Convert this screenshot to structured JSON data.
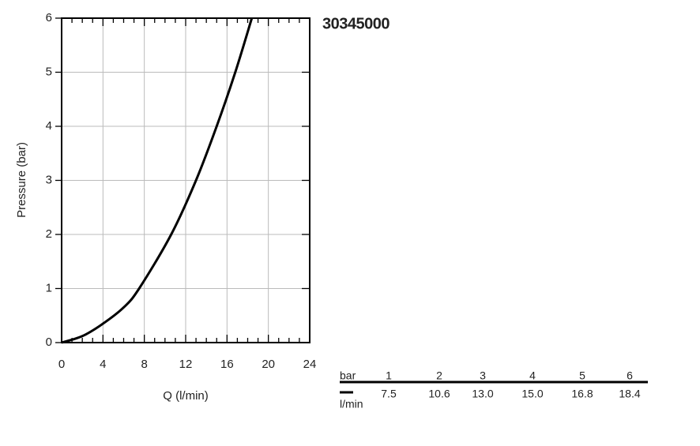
{
  "chart_data": {
    "type": "line",
    "title": "30345000",
    "xlabel": "Q (l/min)",
    "ylabel": "Pressure (bar)",
    "x": [
      0,
      2,
      4,
      6,
      7.5,
      10.6,
      13.0,
      15.0,
      16.8,
      18.4
    ],
    "series": [
      {
        "color": "#000000",
        "values": [
          0,
          0.12,
          0.35,
          0.65,
          1,
          2,
          3,
          4,
          5,
          6
        ]
      }
    ],
    "xlim": [
      0,
      24
    ],
    "xticks": [
      0,
      4,
      8,
      12,
      16,
      20,
      24
    ],
    "ylim": [
      0,
      6
    ],
    "yticks": [
      0,
      1,
      2,
      3,
      4,
      5,
      6
    ],
    "grid": true
  },
  "table": {
    "header": "bar",
    "unit": "l/min",
    "pressures": [
      "1",
      "2",
      "3",
      "4",
      "5",
      "6"
    ],
    "flows": [
      "7.5",
      "10.6",
      "13.0",
      "15.0",
      "16.8",
      "18.4"
    ]
  }
}
